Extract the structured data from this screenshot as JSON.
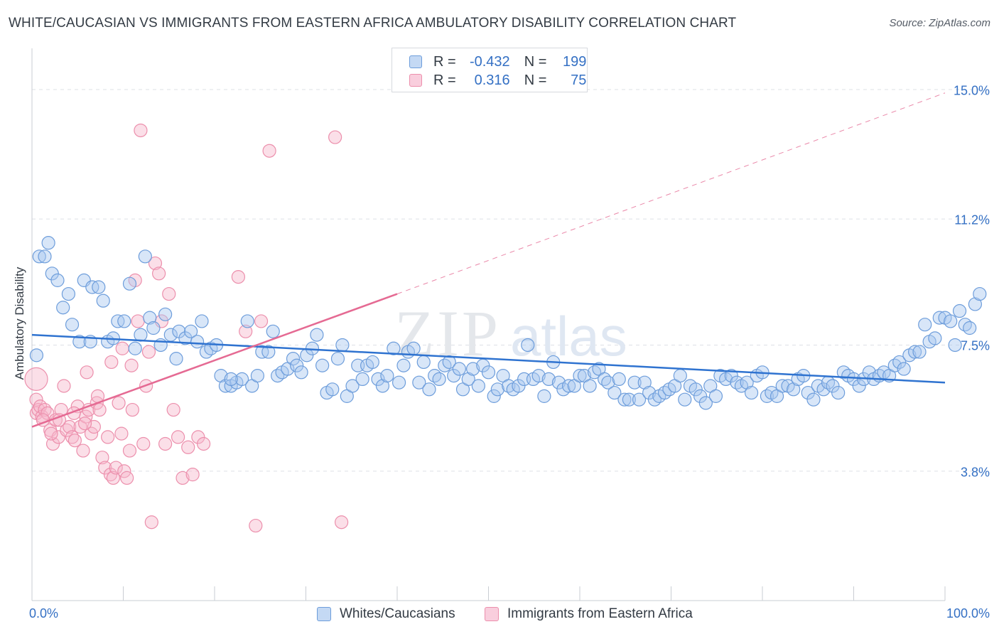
{
  "title": "WHITE/CAUCASIAN VS IMMIGRANTS FROM EASTERN AFRICA AMBULATORY DISABILITY CORRELATION CHART",
  "source": "Source: ZipAtlas.com",
  "watermark": {
    "zip": "ZIP",
    "atlas": "atlas"
  },
  "legend": {
    "r_label": "R =",
    "n_label": "N =",
    "rows": [
      {
        "r": "-0.432",
        "n": "199"
      },
      {
        "r": "0.316",
        "n": "75"
      }
    ]
  },
  "colors": {
    "blue_fill": "#a9c8ef",
    "blue_stroke": "#6d9ddb",
    "blue_line": "#2f73d0",
    "pink_fill": "#f6b8cc",
    "pink_stroke": "#ec8fac",
    "pink_line": "#e56a93",
    "tick_text": "#3470c4",
    "grid": "#dde0e5"
  },
  "chart_data": {
    "type": "scatter",
    "xlabel": "",
    "ylabel": "Ambulatory Disability",
    "xlim": [
      0,
      100
    ],
    "ylim": [
      0,
      16.0
    ],
    "x_tick_labels": [
      {
        "value": 0,
        "label": "0.0%"
      },
      {
        "value": 100,
        "label": "100.0%"
      }
    ],
    "y_ticks": [
      {
        "value": 3.8,
        "label": "3.8%"
      },
      {
        "value": 7.5,
        "label": "7.5%"
      },
      {
        "value": 11.2,
        "label": "11.2%"
      },
      {
        "value": 15.0,
        "label": "15.0%"
      }
    ],
    "series": [
      {
        "name": "Whites/Caucasians",
        "color_key": "blue",
        "trend": {
          "x0": 0,
          "y0": 7.8,
          "x1": 100,
          "y1": 6.4
        },
        "points": [
          [
            0.5,
            7.2
          ],
          [
            0.8,
            10.1
          ],
          [
            1.4,
            10.1
          ],
          [
            1.8,
            10.5
          ],
          [
            2.2,
            9.6
          ],
          [
            2.8,
            9.4
          ],
          [
            3.4,
            8.6
          ],
          [
            4.0,
            9.0
          ],
          [
            4.4,
            8.1
          ],
          [
            5.2,
            7.6
          ],
          [
            5.7,
            9.4
          ],
          [
            6.4,
            7.6
          ],
          [
            6.6,
            9.2
          ],
          [
            7.3,
            9.2
          ],
          [
            7.8,
            8.8
          ],
          [
            8.3,
            7.6
          ],
          [
            8.9,
            7.7
          ],
          [
            9.4,
            8.2
          ],
          [
            10.1,
            8.2
          ],
          [
            10.7,
            9.3
          ],
          [
            11.3,
            7.4
          ],
          [
            11.9,
            7.8
          ],
          [
            12.4,
            10.1
          ],
          [
            12.9,
            8.3
          ],
          [
            13.3,
            8.0
          ],
          [
            14.1,
            7.5
          ],
          [
            14.6,
            8.4
          ],
          [
            15.2,
            7.8
          ],
          [
            15.8,
            7.1
          ],
          [
            16.1,
            7.9
          ],
          [
            16.8,
            7.7
          ],
          [
            17.4,
            7.9
          ],
          [
            18.1,
            7.6
          ],
          [
            18.6,
            8.2
          ],
          [
            19.1,
            7.3
          ],
          [
            19.6,
            7.4
          ],
          [
            20.2,
            7.5
          ],
          [
            20.7,
            6.6
          ],
          [
            21.2,
            6.3
          ],
          [
            21.8,
            6.3
          ],
          [
            22.4,
            6.4
          ],
          [
            23.0,
            6.5
          ],
          [
            23.6,
            8.2
          ],
          [
            24.1,
            6.3
          ],
          [
            24.7,
            6.6
          ],
          [
            25.2,
            7.3
          ],
          [
            25.9,
            7.3
          ],
          [
            26.4,
            7.9
          ],
          [
            26.9,
            6.6
          ],
          [
            27.4,
            6.7
          ],
          [
            28.0,
            6.8
          ],
          [
            28.6,
            7.1
          ],
          [
            29.0,
            6.9
          ],
          [
            29.5,
            6.7
          ],
          [
            30.1,
            7.2
          ],
          [
            30.7,
            7.4
          ],
          [
            31.2,
            7.8
          ],
          [
            31.8,
            6.9
          ],
          [
            32.3,
            6.1
          ],
          [
            32.9,
            6.2
          ],
          [
            33.5,
            7.1
          ],
          [
            34.0,
            7.5
          ],
          [
            34.5,
            6.0
          ],
          [
            35.1,
            6.3
          ],
          [
            35.7,
            6.9
          ],
          [
            36.2,
            6.5
          ],
          [
            36.7,
            6.9
          ],
          [
            37.3,
            7.0
          ],
          [
            37.9,
            6.5
          ],
          [
            38.4,
            6.3
          ],
          [
            38.9,
            6.6
          ],
          [
            39.6,
            7.4
          ],
          [
            40.2,
            6.4
          ],
          [
            40.7,
            6.9
          ],
          [
            41.2,
            7.3
          ],
          [
            41.8,
            7.4
          ],
          [
            42.4,
            6.4
          ],
          [
            42.9,
            7.0
          ],
          [
            43.5,
            6.2
          ],
          [
            44.1,
            6.6
          ],
          [
            44.6,
            6.5
          ],
          [
            45.2,
            6.9
          ],
          [
            45.7,
            7.0
          ],
          [
            46.2,
            6.6
          ],
          [
            46.8,
            6.8
          ],
          [
            47.2,
            6.2
          ],
          [
            47.8,
            6.5
          ],
          [
            48.3,
            6.8
          ],
          [
            48.9,
            6.3
          ],
          [
            49.4,
            6.9
          ],
          [
            50.0,
            6.7
          ],
          [
            50.6,
            6.0
          ],
          [
            51.0,
            6.2
          ],
          [
            51.6,
            6.6
          ],
          [
            52.2,
            6.3
          ],
          [
            52.7,
            6.2
          ],
          [
            53.3,
            6.3
          ],
          [
            53.9,
            6.5
          ],
          [
            54.3,
            7.5
          ],
          [
            54.9,
            6.5
          ],
          [
            55.5,
            6.6
          ],
          [
            56.1,
            6.0
          ],
          [
            56.6,
            6.5
          ],
          [
            57.1,
            7.0
          ],
          [
            57.7,
            6.4
          ],
          [
            58.2,
            6.2
          ],
          [
            58.8,
            6.3
          ],
          [
            59.4,
            6.3
          ],
          [
            60.0,
            6.6
          ],
          [
            60.5,
            6.6
          ],
          [
            61.1,
            6.3
          ],
          [
            61.6,
            6.7
          ],
          [
            62.1,
            6.8
          ],
          [
            62.7,
            6.5
          ],
          [
            63.1,
            6.4
          ],
          [
            63.8,
            6.1
          ],
          [
            64.3,
            6.5
          ],
          [
            64.9,
            5.9
          ],
          [
            65.4,
            5.9
          ],
          [
            66.0,
            6.4
          ],
          [
            66.5,
            5.9
          ],
          [
            67.1,
            6.4
          ],
          [
            67.6,
            6.1
          ],
          [
            68.2,
            5.9
          ],
          [
            68.7,
            6.0
          ],
          [
            69.3,
            6.1
          ],
          [
            69.8,
            6.2
          ],
          [
            70.4,
            6.3
          ],
          [
            71.0,
            6.6
          ],
          [
            71.5,
            5.9
          ],
          [
            72.1,
            6.3
          ],
          [
            72.7,
            6.2
          ],
          [
            73.2,
            6.0
          ],
          [
            73.8,
            5.8
          ],
          [
            74.3,
            6.3
          ],
          [
            74.9,
            6.0
          ],
          [
            75.4,
            6.6
          ],
          [
            76.0,
            6.5
          ],
          [
            76.6,
            6.6
          ],
          [
            77.2,
            6.4
          ],
          [
            77.7,
            6.3
          ],
          [
            78.3,
            6.4
          ],
          [
            78.8,
            6.1
          ],
          [
            79.4,
            6.6
          ],
          [
            80.0,
            6.7
          ],
          [
            80.5,
            6.0
          ],
          [
            81.0,
            6.1
          ],
          [
            81.6,
            6.0
          ],
          [
            82.2,
            6.3
          ],
          [
            82.8,
            6.3
          ],
          [
            83.4,
            6.2
          ],
          [
            83.9,
            6.5
          ],
          [
            84.5,
            6.6
          ],
          [
            85.0,
            6.1
          ],
          [
            85.6,
            5.9
          ],
          [
            86.1,
            6.3
          ],
          [
            86.7,
            6.2
          ],
          [
            87.2,
            6.4
          ],
          [
            87.7,
            6.3
          ],
          [
            88.3,
            6.1
          ],
          [
            88.9,
            6.7
          ],
          [
            89.4,
            6.6
          ],
          [
            90.0,
            6.5
          ],
          [
            90.6,
            6.3
          ],
          [
            91.1,
            6.5
          ],
          [
            91.7,
            6.7
          ],
          [
            92.2,
            6.5
          ],
          [
            92.8,
            6.6
          ],
          [
            93.3,
            6.7
          ],
          [
            93.9,
            6.6
          ],
          [
            94.5,
            6.9
          ],
          [
            95.0,
            7.0
          ],
          [
            95.5,
            6.8
          ],
          [
            96.1,
            7.2
          ],
          [
            96.7,
            7.3
          ],
          [
            97.2,
            7.3
          ],
          [
            97.8,
            8.1
          ],
          [
            98.3,
            7.6
          ],
          [
            98.9,
            7.7
          ],
          [
            99.4,
            8.3
          ],
          [
            100.0,
            8.3
          ],
          [
            100.6,
            8.2
          ],
          [
            101.1,
            7.5
          ],
          [
            101.6,
            8.5
          ],
          [
            102.2,
            8.1
          ],
          [
            102.7,
            8.0
          ],
          [
            103.3,
            8.7
          ],
          [
            103.8,
            9.0
          ],
          [
            21.8,
            6.5
          ]
        ]
      },
      {
        "name": "Immigrants from Eastern Africa",
        "color_key": "pink",
        "trend": {
          "x0": 0,
          "y0": 5.1,
          "x1": 40,
          "y1": 9.0
        },
        "trend_dashed": {
          "x0": 40,
          "y0": 9.0,
          "x1": 100,
          "y1": 14.9
        },
        "points": [
          [
            0.2,
            5.9
          ],
          [
            0.3,
            6.5
          ],
          [
            0.5,
            5.5
          ],
          [
            0.7,
            5.6
          ],
          [
            0.9,
            5.7
          ],
          [
            1.1,
            5.4
          ],
          [
            1.4,
            5.6
          ],
          [
            1.7,
            5.5
          ],
          [
            2.0,
            5.0
          ],
          [
            2.3,
            4.6
          ],
          [
            2.6,
            5.3
          ],
          [
            2.9,
            4.8
          ],
          [
            3.2,
            5.6
          ],
          [
            3.5,
            6.3
          ],
          [
            3.8,
            5.0
          ],
          [
            4.1,
            5.1
          ],
          [
            4.4,
            4.8
          ],
          [
            4.7,
            4.7
          ],
          [
            5.0,
            5.7
          ],
          [
            5.3,
            5.1
          ],
          [
            5.6,
            4.4
          ],
          [
            5.9,
            5.4
          ],
          [
            6.2,
            5.6
          ],
          [
            6.5,
            4.9
          ],
          [
            6.8,
            5.1
          ],
          [
            7.1,
            5.8
          ],
          [
            7.4,
            5.6
          ],
          [
            7.7,
            4.2
          ],
          [
            8.0,
            3.9
          ],
          [
            8.3,
            4.8
          ],
          [
            8.6,
            3.7
          ],
          [
            8.9,
            3.6
          ],
          [
            9.2,
            3.9
          ],
          [
            9.5,
            5.8
          ],
          [
            9.8,
            4.9
          ],
          [
            10.1,
            3.8
          ],
          [
            10.4,
            3.6
          ],
          [
            10.7,
            4.4
          ],
          [
            11.0,
            5.6
          ],
          [
            11.3,
            9.4
          ],
          [
            11.6,
            8.2
          ],
          [
            11.9,
            13.8
          ],
          [
            12.2,
            4.6
          ],
          [
            12.5,
            6.3
          ],
          [
            12.8,
            7.3
          ],
          [
            13.1,
            2.3
          ],
          [
            13.5,
            9.9
          ],
          [
            13.9,
            9.6
          ],
          [
            14.2,
            8.2
          ],
          [
            14.6,
            4.6
          ],
          [
            15.0,
            9.0
          ],
          [
            15.5,
            5.6
          ],
          [
            16.0,
            4.8
          ],
          [
            16.5,
            3.6
          ],
          [
            17.1,
            4.5
          ],
          [
            17.6,
            3.7
          ],
          [
            18.2,
            4.8
          ],
          [
            18.8,
            4.6
          ],
          [
            22.6,
            9.5
          ],
          [
            23.4,
            7.9
          ],
          [
            24.5,
            2.2
          ],
          [
            25.1,
            8.2
          ],
          [
            26.0,
            13.2
          ],
          [
            33.2,
            13.6
          ],
          [
            33.9,
            2.3
          ],
          [
            6.0,
            6.7
          ],
          [
            7.2,
            6.0
          ],
          [
            8.7,
            7.0
          ],
          [
            9.9,
            7.4
          ],
          [
            10.9,
            6.9
          ],
          [
            3.0,
            5.3
          ],
          [
            4.6,
            5.5
          ],
          [
            5.8,
            5.2
          ],
          [
            2.1,
            4.9
          ],
          [
            1.2,
            5.3
          ]
        ]
      }
    ]
  },
  "bottom_legend": [
    {
      "label": "Whites/Caucasians"
    },
    {
      "label": "Immigrants from Eastern Africa"
    }
  ]
}
